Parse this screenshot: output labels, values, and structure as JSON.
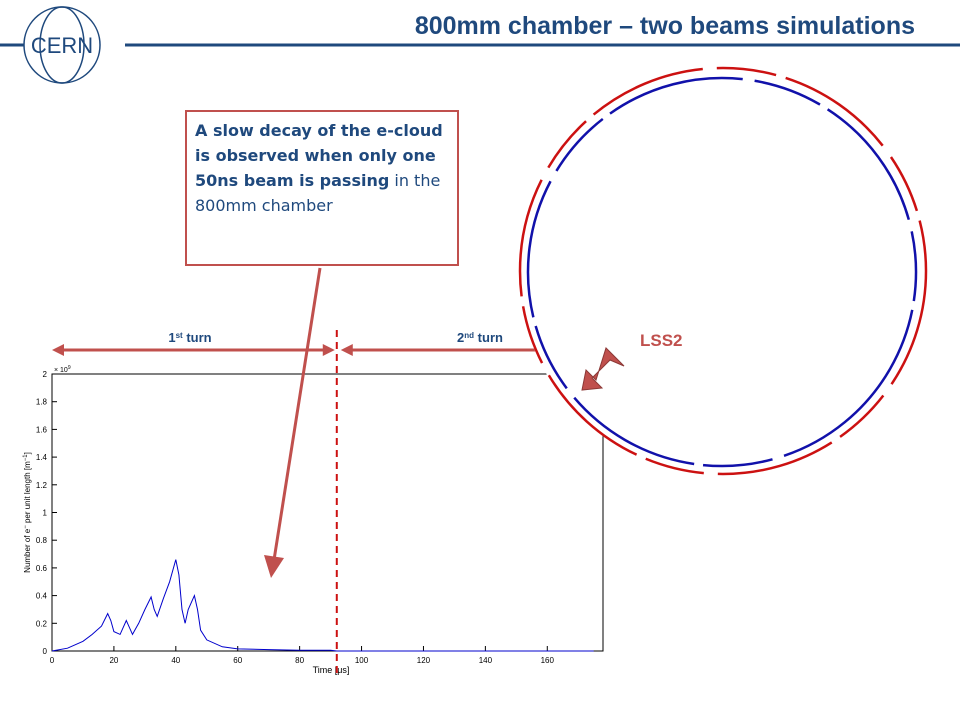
{
  "header": {
    "title": "800mm chamber – two beams simulations",
    "logo": "CERN"
  },
  "callout": {
    "bold": "A slow decay of the e-cloud is observed when only one 50ns beam is passing",
    "normal": " in the 800mm chamber"
  },
  "turns": [
    {
      "number": "1",
      "suffix": "st",
      "text": " turn"
    },
    {
      "number": "2",
      "suffix": "nd",
      "text": " turn"
    }
  ],
  "marker": {
    "label": "LSS2"
  },
  "chart_data": {
    "type": "line",
    "xlabel": "Time [μs]",
    "ylabel_parts": [
      "Number of e",
      "−",
      " per unit length [m",
      "−1",
      "]"
    ],
    "y_multiplier": {
      "base": "× 10",
      "exponent": "9"
    },
    "x": [
      0,
      5,
      10,
      13,
      16,
      18,
      19,
      20,
      22,
      24,
      26,
      27,
      28,
      30,
      32,
      33,
      34,
      36,
      38,
      40,
      41,
      42,
      43,
      44,
      46,
      47,
      48,
      50,
      55,
      60,
      70,
      80,
      90,
      92,
      100,
      120,
      140,
      160,
      175
    ],
    "values": [
      0,
      0.02,
      0.07,
      0.12,
      0.18,
      0.27,
      0.22,
      0.14,
      0.12,
      0.22,
      0.12,
      0.16,
      0.2,
      0.3,
      0.39,
      0.3,
      0.25,
      0.38,
      0.5,
      0.66,
      0.55,
      0.3,
      0.2,
      0.3,
      0.4,
      0.3,
      0.15,
      0.08,
      0.03,
      0.015,
      0.01,
      0.005,
      0.005,
      0,
      0,
      0,
      0,
      0,
      0
    ],
    "color": "#0000cc",
    "xlim": [
      0,
      178
    ],
    "ylim": [
      0,
      2
    ],
    "xticks": [
      0,
      20,
      40,
      60,
      80,
      100,
      120,
      140,
      160
    ],
    "yticks": [
      0,
      0.2,
      0.4,
      0.6,
      0.8,
      1,
      1.2,
      1.4,
      1.6,
      1.8,
      2
    ],
    "vline": 92
  }
}
